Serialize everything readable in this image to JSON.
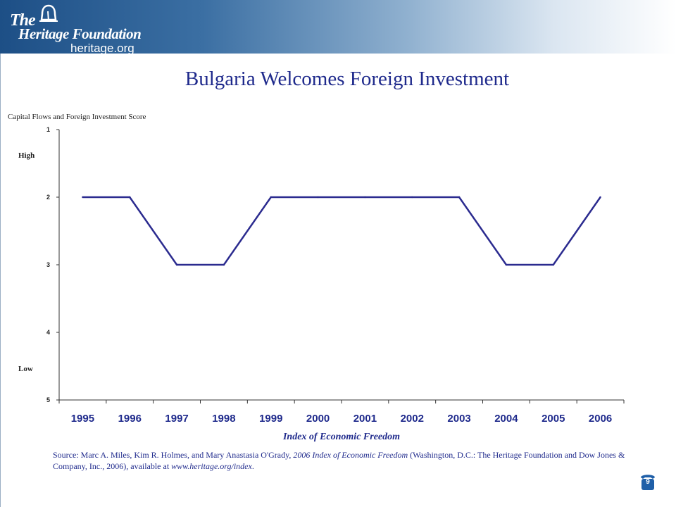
{
  "header": {
    "logo_the": "The",
    "logo_name": "Heritage Foundation",
    "logo_url": "heritage.org",
    "colors": {
      "band_dark": "#1d4f86",
      "band_light": "#ffffff",
      "title": "#1f2a8c",
      "line": "#2b2b8f"
    }
  },
  "slide": {
    "title": "Bulgaria Welcomes Foreign Investment",
    "page_number": "9"
  },
  "chart_labels": {
    "series_label": "Capital Flows and Foreign Investment Score",
    "high": "High",
    "low": "Low",
    "xlabel": "Index of Economic Freedom"
  },
  "source": {
    "prefix": "Source: Marc A. Miles, Kim R. Holmes, and Mary Anastasia O'Grady, ",
    "book": "2006 Index of Economic Freedom",
    "middle": " (Washington, D.C.: The Heritage Foundation and Dow Jones & Company, Inc., 2006), available at ",
    "link": "www.heritage.org/index",
    "suffix": "."
  },
  "chart_data": {
    "type": "line",
    "title": "",
    "xlabel": "Index of Economic Freedom",
    "ylabel": "Capital Flows and Foreign Investment Score",
    "categories": [
      "1995",
      "1996",
      "1997",
      "1998",
      "1999",
      "2000",
      "2001",
      "2002",
      "2003",
      "2004",
      "2005",
      "2006"
    ],
    "series": [
      {
        "values": [
          2,
          2,
          3,
          3,
          2,
          2,
          2,
          2,
          2,
          3,
          3,
          2
        ]
      }
    ],
    "ylim": [
      1,
      5
    ],
    "yticks": [
      "1",
      "2",
      "3",
      "4",
      "5"
    ],
    "y_inverted": true,
    "grid": false,
    "legend": "none"
  }
}
